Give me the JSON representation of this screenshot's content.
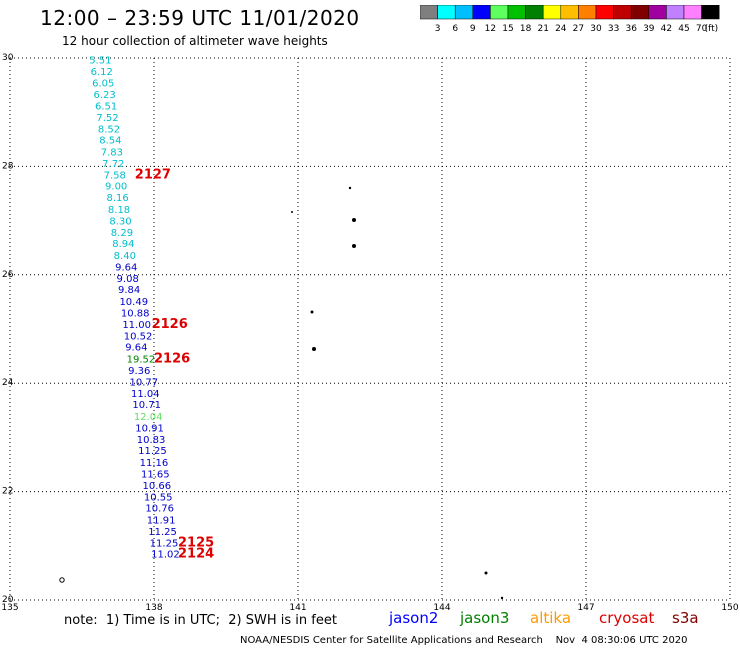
{
  "title": "12:00 – 23:59 UTC 11/01/2020",
  "subtitle": "12 hour collection of altimeter wave heights",
  "legend": {
    "colors": [
      "#7f7f7f",
      "#00ffff",
      "#00bfff",
      "#0000ff",
      "#5fff5f",
      "#00c000",
      "#008000",
      "#ffff00",
      "#ffbf00",
      "#ff8000",
      "#ff0000",
      "#c00000",
      "#800000",
      "#a000a0",
      "#c080ff",
      "#ff80ff",
      "#000000"
    ],
    "labels": [
      "3",
      "6",
      "9",
      "12",
      "15",
      "18",
      "21",
      "24",
      "27",
      "30",
      "33",
      "36",
      "39",
      "42",
      "45",
      "70"
    ],
    "unit": "(ft)"
  },
  "map": {
    "x_ticks": [
      "135",
      "138",
      "141",
      "144",
      "147",
      "150"
    ],
    "y_ticks": [
      "30",
      "28",
      "26",
      "24",
      "22",
      "20"
    ]
  },
  "wave_heights": [
    {
      "v": "5.51",
      "lat": 29.9,
      "lon": 136.65,
      "c": "#00bfcc"
    },
    {
      "v": "6.12",
      "lat": 29.69,
      "lon": 136.68,
      "c": "#00bfcc"
    },
    {
      "v": "6.05",
      "lat": 29.47,
      "lon": 136.71,
      "c": "#00bfcc"
    },
    {
      "v": "6.23",
      "lat": 29.26,
      "lon": 136.74,
      "c": "#00bfcc"
    },
    {
      "v": "6.51",
      "lat": 29.05,
      "lon": 136.77,
      "c": "#00bfcc"
    },
    {
      "v": "7.52",
      "lat": 28.84,
      "lon": 136.8,
      "c": "#00bfcc"
    },
    {
      "v": "8.52",
      "lat": 28.63,
      "lon": 136.83,
      "c": "#00bfcc"
    },
    {
      "v": "8.54",
      "lat": 28.42,
      "lon": 136.86,
      "c": "#00bfcc"
    },
    {
      "v": "7.83",
      "lat": 28.2,
      "lon": 136.89,
      "c": "#00bfcc"
    },
    {
      "v": "7.72",
      "lat": 27.99,
      "lon": 136.92,
      "c": "#00bfcc"
    },
    {
      "v": "7.58",
      "lat": 27.78,
      "lon": 136.95,
      "c": "#00bfcc"
    },
    {
      "v": "9.00",
      "lat": 27.57,
      "lon": 136.98,
      "c": "#00bfcc"
    },
    {
      "v": "8.16",
      "lat": 27.36,
      "lon": 137.01,
      "c": "#00bfcc"
    },
    {
      "v": "8.18",
      "lat": 27.14,
      "lon": 137.04,
      "c": "#00bfcc"
    },
    {
      "v": "8.30",
      "lat": 26.93,
      "lon": 137.07,
      "c": "#00bfcc"
    },
    {
      "v": "8.29",
      "lat": 26.72,
      "lon": 137.1,
      "c": "#00bfcc"
    },
    {
      "v": "8.94",
      "lat": 26.51,
      "lon": 137.13,
      "c": "#00bfcc"
    },
    {
      "v": "8.40",
      "lat": 26.29,
      "lon": 137.16,
      "c": "#00bfcc"
    },
    {
      "v": "9.64",
      "lat": 26.08,
      "lon": 137.19,
      "c": "#0000cc"
    },
    {
      "v": "9.08",
      "lat": 25.87,
      "lon": 137.22,
      "c": "#0000cc"
    },
    {
      "v": "9.84",
      "lat": 25.66,
      "lon": 137.25,
      "c": "#0000cc"
    },
    {
      "v": "10.49",
      "lat": 25.44,
      "lon": 137.28,
      "c": "#0000cc"
    },
    {
      "v": "10.88",
      "lat": 25.23,
      "lon": 137.31,
      "c": "#0000cc"
    },
    {
      "v": "11.00",
      "lat": 25.02,
      "lon": 137.34,
      "c": "#0000cc"
    },
    {
      "v": "10.52",
      "lat": 24.81,
      "lon": 137.37,
      "c": "#0000cc"
    },
    {
      "v": "9.64",
      "lat": 24.6,
      "lon": 137.4,
      "c": "#0000cc"
    },
    {
      "v": "19.52",
      "lat": 24.38,
      "lon": 137.43,
      "c": "#008000"
    },
    {
      "v": "9.36",
      "lat": 24.17,
      "lon": 137.46,
      "c": "#0000cc"
    },
    {
      "v": "10.77",
      "lat": 23.96,
      "lon": 137.49,
      "c": "#0000cc"
    },
    {
      "v": "11.04",
      "lat": 23.75,
      "lon": 137.52,
      "c": "#0000cc"
    },
    {
      "v": "10.71",
      "lat": 23.54,
      "lon": 137.55,
      "c": "#0000cc"
    },
    {
      "v": "12.04",
      "lat": 23.32,
      "lon": 137.58,
      "c": "#60e060"
    },
    {
      "v": "10.91",
      "lat": 23.11,
      "lon": 137.61,
      "c": "#0000cc"
    },
    {
      "v": "10.83",
      "lat": 22.9,
      "lon": 137.64,
      "c": "#0000cc"
    },
    {
      "v": "11.25",
      "lat": 22.69,
      "lon": 137.67,
      "c": "#0000cc"
    },
    {
      "v": "11.16",
      "lat": 22.47,
      "lon": 137.7,
      "c": "#0000cc"
    },
    {
      "v": "11.65",
      "lat": 22.26,
      "lon": 137.73,
      "c": "#0000cc"
    },
    {
      "v": "10.66",
      "lat": 22.05,
      "lon": 137.76,
      "c": "#0000cc"
    },
    {
      "v": "10.55",
      "lat": 21.84,
      "lon": 137.79,
      "c": "#0000cc"
    },
    {
      "v": "10.76",
      "lat": 21.63,
      "lon": 137.82,
      "c": "#0000cc"
    },
    {
      "v": "11.91",
      "lat": 21.41,
      "lon": 137.85,
      "c": "#0000cc"
    },
    {
      "v": "11.25",
      "lat": 21.2,
      "lon": 137.88,
      "c": "#0000cc"
    },
    {
      "v": "11.25",
      "lat": 20.99,
      "lon": 137.91,
      "c": "#0000cc"
    },
    {
      "v": "11.02",
      "lat": 20.78,
      "lon": 137.94,
      "c": "#0000cc"
    }
  ],
  "pass_labels": [
    {
      "v": "2127",
      "lat": 27.78,
      "lon": 137.6
    },
    {
      "v": "2126",
      "lat": 25.02,
      "lon": 137.95
    },
    {
      "v": "2126",
      "lat": 24.38,
      "lon": 138.0
    },
    {
      "v": "2125",
      "lat": 20.99,
      "lon": 138.5
    },
    {
      "v": "2124",
      "lat": 20.78,
      "lon": 138.5
    }
  ],
  "note": "note:  1) Time is in UTC;  2) SWH is in feet",
  "satellites": [
    {
      "name": "jason2",
      "color": "#0000ff"
    },
    {
      "name": "jason3",
      "color": "#008000"
    },
    {
      "name": "altika",
      "color": "#ff9900"
    },
    {
      "name": "cryosat",
      "color": "#dd0000"
    },
    {
      "name": "s3a",
      "color": "#800000"
    }
  ],
  "credit": "NOAA/NESDIS Center for Satellite Applications and Research    Nov  4 08:30:06 UTC 2020"
}
